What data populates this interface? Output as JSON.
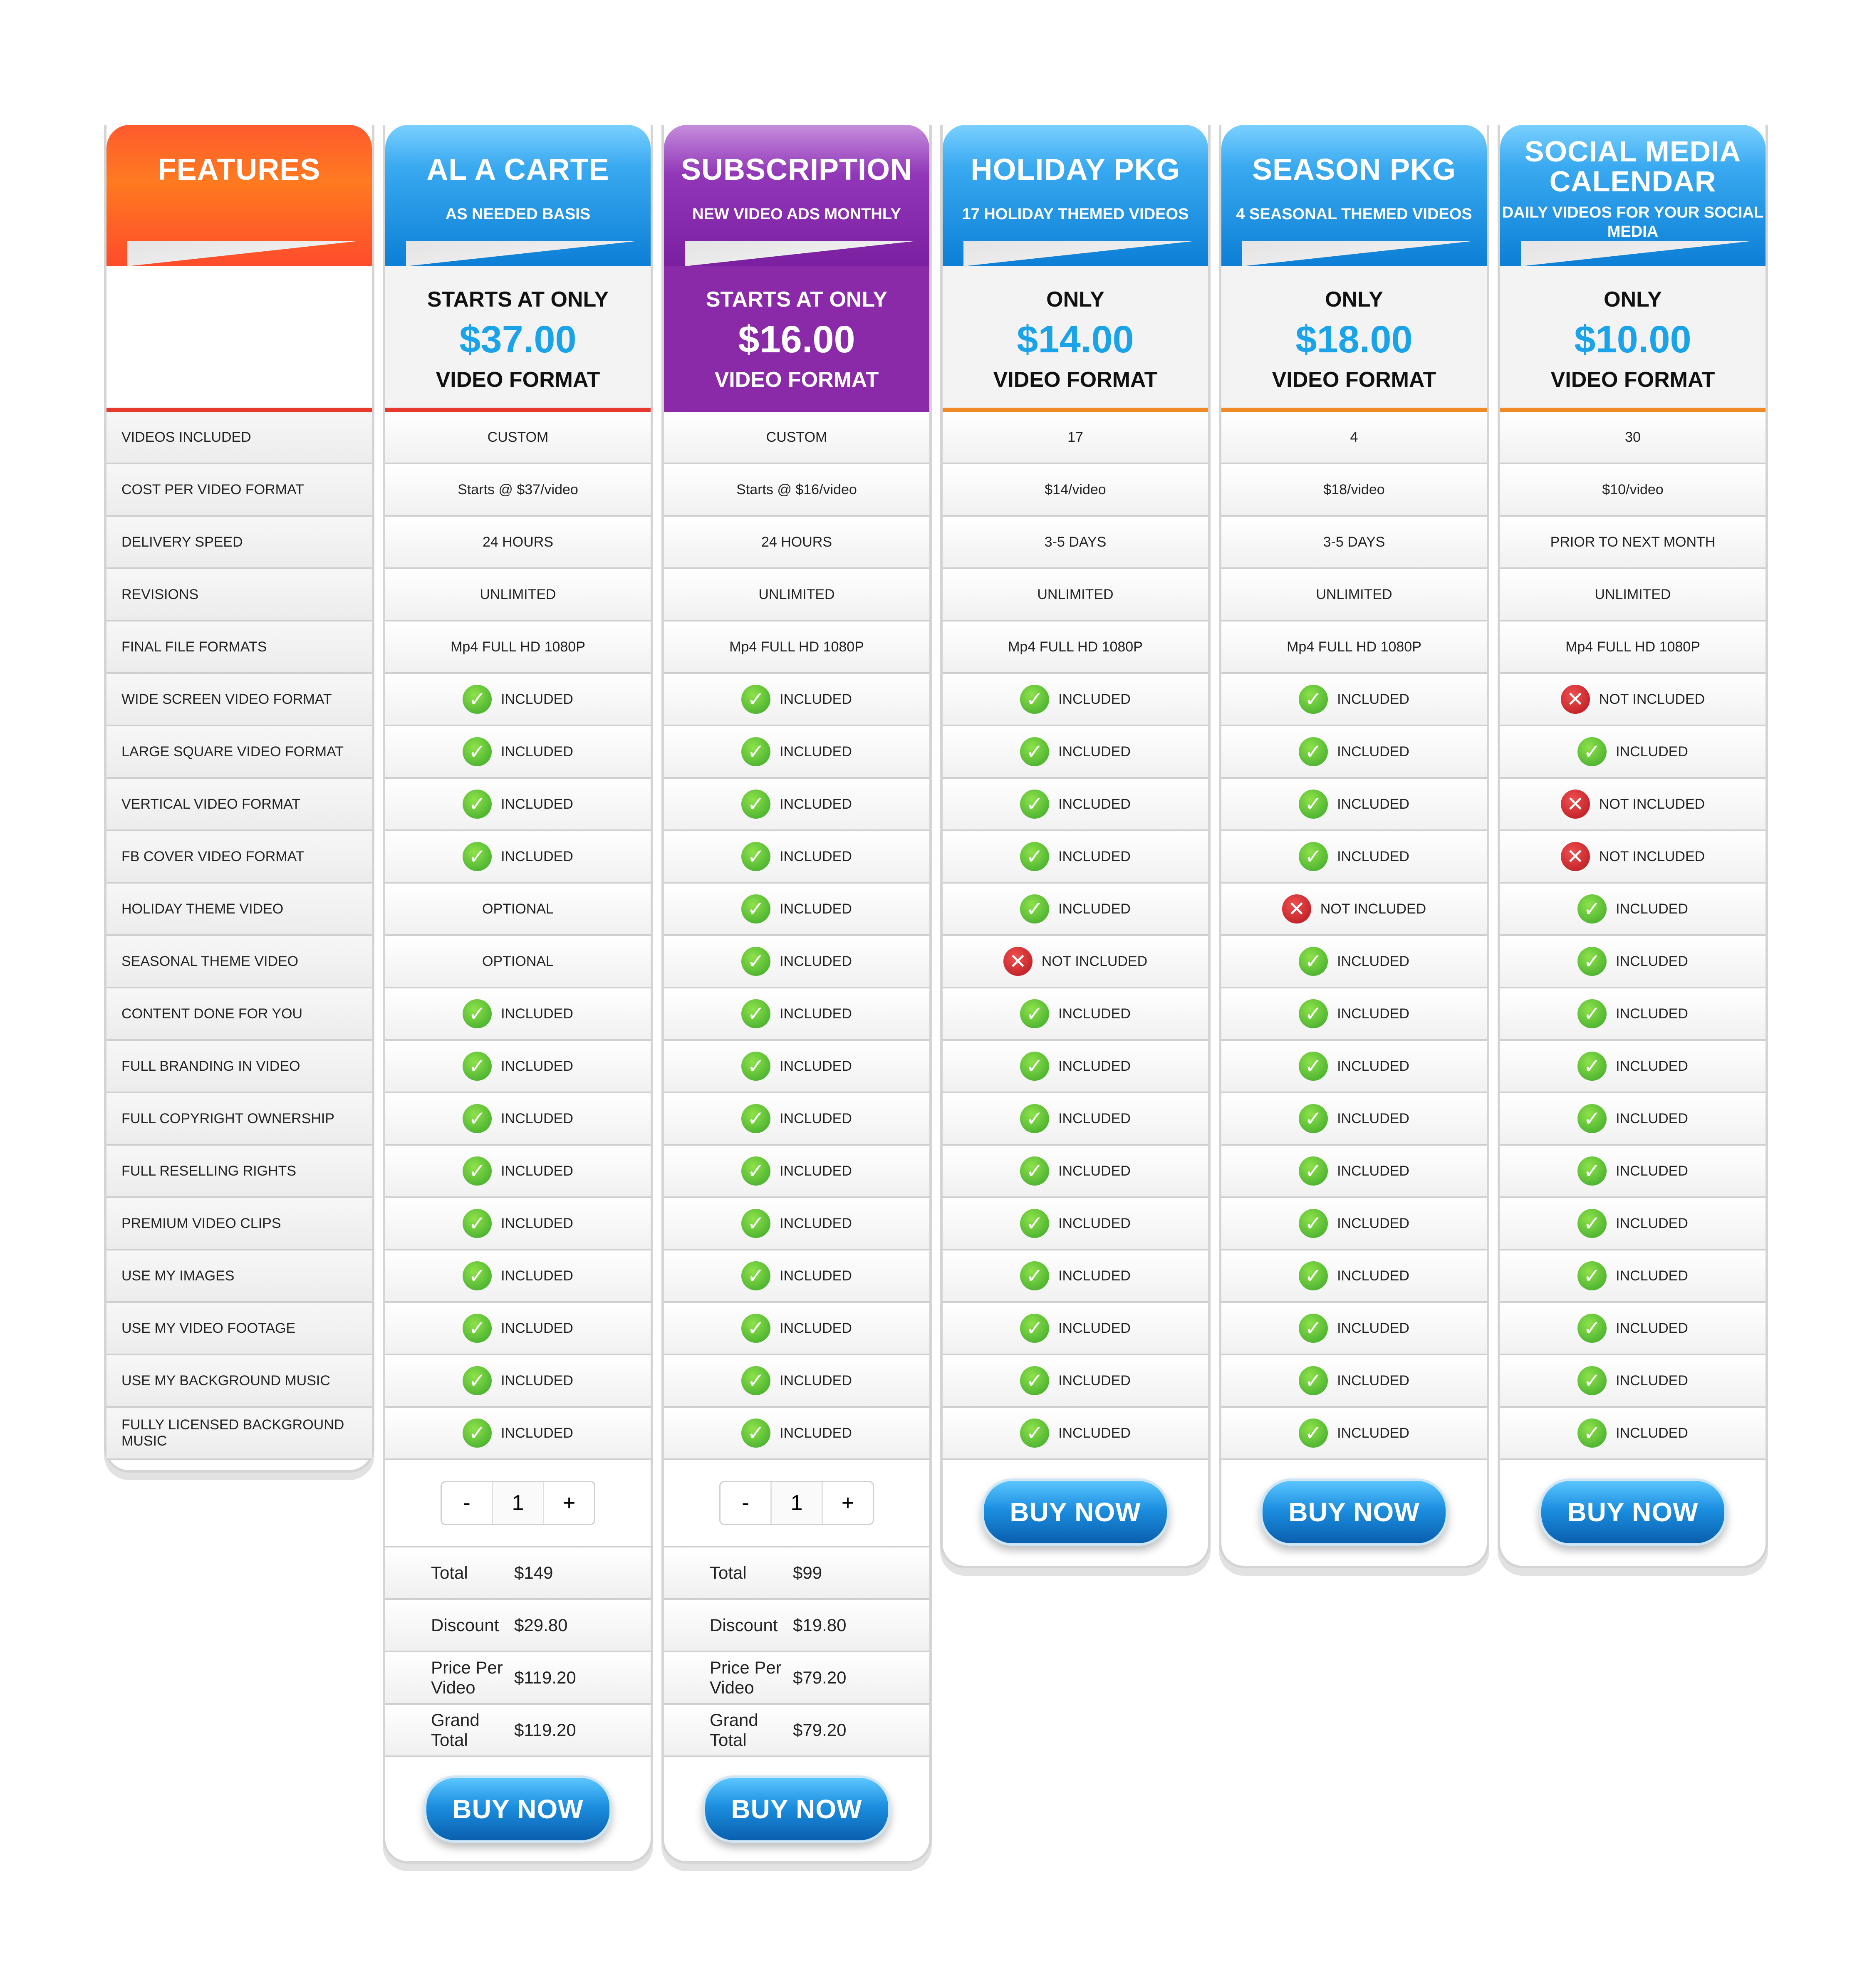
{
  "features": {
    "title": "FEATURES",
    "rows": [
      "VIDEOS INCLUDED",
      "COST PER VIDEO FORMAT",
      "DELIVERY SPEED",
      "REVISIONS",
      "FINAL FILE FORMATS",
      "WIDE SCREEN VIDEO FORMAT",
      "LARGE SQUARE VIDEO FORMAT",
      "VERTICAL VIDEO FORMAT",
      "FB COVER VIDEO FORMAT",
      "HOLIDAY THEME VIDEO",
      "SEASONAL THEME VIDEO",
      "CONTENT DONE FOR YOU",
      "FULL BRANDING IN VIDEO",
      "FULL COPYRIGHT OWNERSHIP",
      "FULL RESELLING RIGHTS",
      "PREMIUM VIDEO CLIPS",
      "USE MY IMAGES",
      "USE MY VIDEO FOOTAGE",
      "USE MY BACKGROUND MUSIC",
      "FULLY LICENSED BACKGROUND MUSIC"
    ]
  },
  "plans": [
    {
      "title": "AL A CARTE",
      "subtitle": "AS NEEDED BASIS",
      "price_label": "STARTS AT ONLY",
      "price": "$37.00",
      "format": "VIDEO FORMAT",
      "cells": [
        "CUSTOM",
        "Starts @ $37/video",
        "24 HOURS",
        "UNLIMITED",
        "Mp4 FULL HD 1080P",
        "INCLUDED",
        "INCLUDED",
        "INCLUDED",
        "INCLUDED",
        "OPTIONAL",
        "OPTIONAL",
        "INCLUDED",
        "INCLUDED",
        "INCLUDED",
        "INCLUDED",
        "INCLUDED",
        "INCLUDED",
        "INCLUDED",
        "INCLUDED",
        "INCLUDED"
      ],
      "icons": [
        "",
        "",
        "",
        "",
        "",
        "check",
        "check",
        "check",
        "check",
        "",
        "",
        "check",
        "check",
        "check",
        "check",
        "check",
        "check",
        "check",
        "check",
        "check"
      ],
      "stepper": {
        "minus": "-",
        "value": "1",
        "plus": "+"
      },
      "summary": [
        {
          "k": "Total",
          "v": "$149"
        },
        {
          "k": "Discount",
          "v": "$29.80"
        },
        {
          "k": "Price Per Video",
          "v": "$119.20"
        },
        {
          "k": "Grand Total",
          "v": "$119.20"
        }
      ],
      "button": "BUY NOW"
    },
    {
      "title": "SUBSCRIPTION",
      "subtitle": "NEW VIDEO ADS MONTHLY",
      "price_label": "STARTS AT ONLY",
      "price": "$16.00",
      "format": "VIDEO FORMAT",
      "cells": [
        "CUSTOM",
        "Starts @ $16/video",
        "24 HOURS",
        "UNLIMITED",
        "Mp4 FULL HD 1080P",
        "INCLUDED",
        "INCLUDED",
        "INCLUDED",
        "INCLUDED",
        "INCLUDED",
        "INCLUDED",
        "INCLUDED",
        "INCLUDED",
        "INCLUDED",
        "INCLUDED",
        "INCLUDED",
        "INCLUDED",
        "INCLUDED",
        "INCLUDED",
        "INCLUDED"
      ],
      "icons": [
        "",
        "",
        "",
        "",
        "",
        "check",
        "check",
        "check",
        "check",
        "check",
        "check",
        "check",
        "check",
        "check",
        "check",
        "check",
        "check",
        "check",
        "check",
        "check"
      ],
      "stepper": {
        "minus": "-",
        "value": "1",
        "plus": "+"
      },
      "summary": [
        {
          "k": "Total",
          "v": "$99"
        },
        {
          "k": "Discount",
          "v": "$19.80"
        },
        {
          "k": "Price Per Video",
          "v": "$79.20"
        },
        {
          "k": "Grand Total",
          "v": "$79.20"
        }
      ],
      "button": "BUY NOW"
    },
    {
      "title": "HOLIDAY PKG",
      "subtitle": "17 HOLIDAY THEMED VIDEOS",
      "price_label": "ONLY",
      "price": "$14.00",
      "format": "VIDEO FORMAT",
      "cells": [
        "17",
        "$14/video",
        "3-5 DAYS",
        "UNLIMITED",
        "Mp4 FULL HD 1080P",
        "INCLUDED",
        "INCLUDED",
        "INCLUDED",
        "INCLUDED",
        "INCLUDED",
        "NOT INCLUDED",
        "INCLUDED",
        "INCLUDED",
        "INCLUDED",
        "INCLUDED",
        "INCLUDED",
        "INCLUDED",
        "INCLUDED",
        "INCLUDED",
        "INCLUDED"
      ],
      "icons": [
        "",
        "",
        "",
        "",
        "",
        "check",
        "check",
        "check",
        "check",
        "check",
        "cross",
        "check",
        "check",
        "check",
        "check",
        "check",
        "check",
        "check",
        "check",
        "check"
      ],
      "button": "BUY NOW"
    },
    {
      "title": "SEASON PKG",
      "subtitle": "4 SEASONAL THEMED VIDEOS",
      "price_label": "ONLY",
      "price": "$18.00",
      "format": "VIDEO FORMAT",
      "cells": [
        "4",
        "$18/video",
        "3-5 DAYS",
        "UNLIMITED",
        "Mp4 FULL HD 1080P",
        "INCLUDED",
        "INCLUDED",
        "INCLUDED",
        "INCLUDED",
        "NOT INCLUDED",
        "INCLUDED",
        "INCLUDED",
        "INCLUDED",
        "INCLUDED",
        "INCLUDED",
        "INCLUDED",
        "INCLUDED",
        "INCLUDED",
        "INCLUDED",
        "INCLUDED"
      ],
      "icons": [
        "",
        "",
        "",
        "",
        "",
        "check",
        "check",
        "check",
        "check",
        "cross",
        "check",
        "check",
        "check",
        "check",
        "check",
        "check",
        "check",
        "check",
        "check",
        "check"
      ],
      "button": "BUY NOW"
    },
    {
      "title": "SOCIAL MEDIA CALENDAR",
      "subtitle": "DAILY VIDEOS FOR YOUR SOCIAL MEDIA",
      "price_label": "ONLY",
      "price": "$10.00",
      "format": "VIDEO FORMAT",
      "cells": [
        "30",
        "$10/video",
        "PRIOR TO NEXT MONTH",
        "UNLIMITED",
        "Mp4 FULL HD 1080P",
        "NOT INCLUDED",
        "INCLUDED",
        "NOT INCLUDED",
        "NOT INCLUDED",
        "INCLUDED",
        "INCLUDED",
        "INCLUDED",
        "INCLUDED",
        "INCLUDED",
        "INCLUDED",
        "INCLUDED",
        "INCLUDED",
        "INCLUDED",
        "INCLUDED",
        "INCLUDED"
      ],
      "icons": [
        "",
        "",
        "",
        "",
        "",
        "cross",
        "check",
        "cross",
        "cross",
        "check",
        "check",
        "check",
        "check",
        "check",
        "check",
        "check",
        "check",
        "check",
        "check",
        "check"
      ],
      "button": "BUY NOW"
    }
  ],
  "icons": {
    "check": "check-icon",
    "cross": "cross-icon"
  },
  "colors": {
    "features_header": "#ff6a28",
    "blue_header": "#1c8fe0",
    "purple_header": "#8a2aa8",
    "price_blue": "#1aa3e8",
    "check_green": "#4cb82e",
    "cross_red": "#c8202a"
  }
}
